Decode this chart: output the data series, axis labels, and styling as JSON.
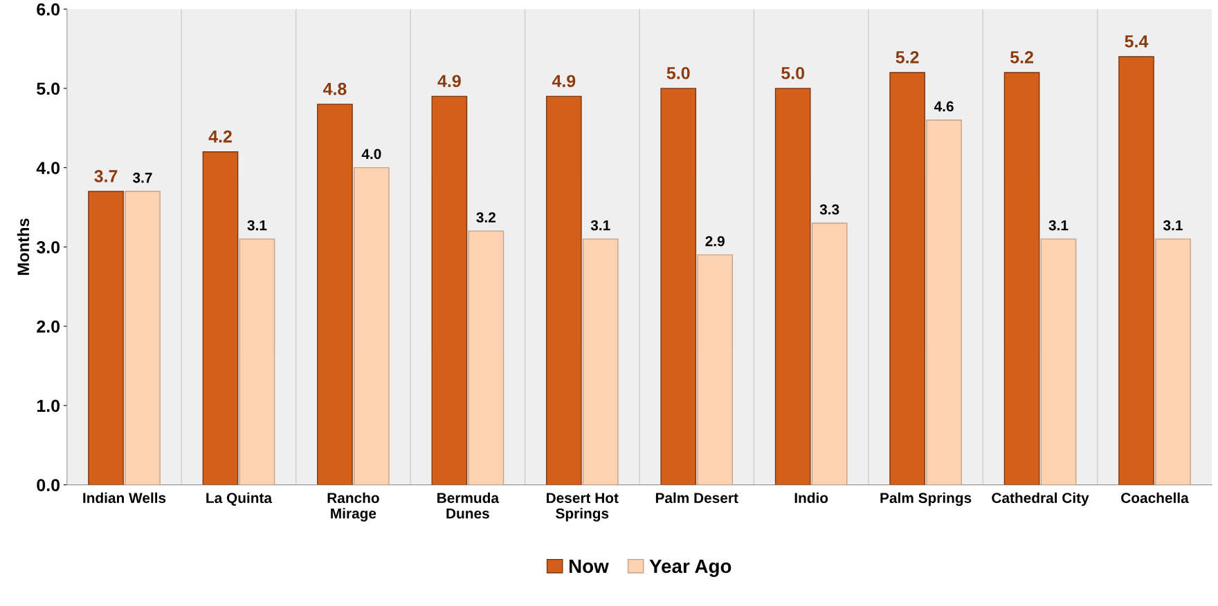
{
  "chart_data": {
    "type": "bar",
    "ylabel": "Months",
    "categories": [
      "Indian Wells",
      "La Quinta",
      "Rancho\nMirage",
      "Bermuda\nDunes",
      "Desert Hot\nSprings",
      "Palm Desert",
      "Indio",
      "Palm Springs",
      "Cathedral City",
      "Coachella"
    ],
    "series": [
      {
        "name": "Now",
        "color": "#d2601a",
        "values": [
          3.7,
          4.2,
          4.8,
          4.9,
          4.9,
          5.0,
          5.0,
          5.2,
          5.2,
          5.4
        ],
        "value_labels": [
          "3.7",
          "4.2",
          "4.8",
          "4.9",
          "4.9",
          "5.0",
          "5.0",
          "5.2",
          "5.2",
          "5.4"
        ]
      },
      {
        "name": "Year Ago",
        "color": "#fbd3b3",
        "values": [
          3.7,
          3.1,
          4.0,
          3.2,
          3.1,
          2.9,
          3.3,
          4.6,
          3.1,
          3.1
        ],
        "value_labels": [
          "3.7",
          "3.1",
          "4.0",
          "3.2",
          "3.1",
          "2.9",
          "3.3",
          "4.6",
          "3.1",
          "3.1"
        ]
      }
    ],
    "ylim": [
      0,
      6
    ],
    "yticks": [
      {
        "value": 0,
        "label": "0.0"
      },
      {
        "value": 1,
        "label": "1.0"
      },
      {
        "value": 2,
        "label": "2.0"
      },
      {
        "value": 3,
        "label": "3.0"
      },
      {
        "value": 4,
        "label": "4.0"
      },
      {
        "value": 5,
        "label": "5.0"
      },
      {
        "value": 6,
        "label": "6.0"
      }
    ],
    "grid": "x",
    "legend": "bottom"
  }
}
